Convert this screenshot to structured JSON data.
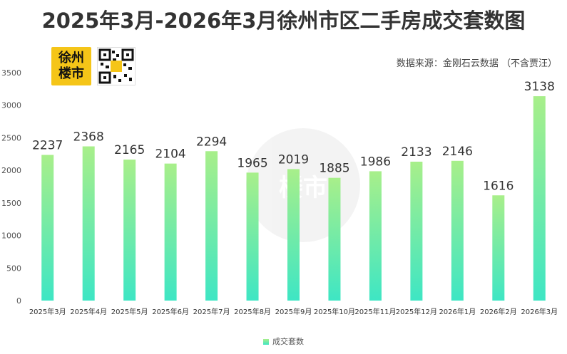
{
  "title": "2025年3月-2026年3月徐州市区二手房成交套数图",
  "source": "数据来源：金刚石云数据  （不含贾汪）",
  "logo": {
    "line1": "徐州",
    "line2": "楼市"
  },
  "watermark": "楼市",
  "colors": {
    "bar_top": "#a8ef8a",
    "bar_bottom": "#3ee6c4",
    "title": "#333333"
  },
  "chart_data": {
    "type": "bar",
    "categories": [
      "2025年3月",
      "2025年4月",
      "2025年5月",
      "2025年6月",
      "2025年7月",
      "2025年8月",
      "2025年9月",
      "2025年10月",
      "2025年11月",
      "2025年12月",
      "2026年1月",
      "2026年2月",
      "2026年3月"
    ],
    "series": [
      {
        "name": "成交套数",
        "values": [
          2237,
          2368,
          2165,
          2104,
          2294,
          1965,
          2019,
          1885,
          1986,
          2133,
          2146,
          1616,
          3138
        ]
      }
    ],
    "ylim": [
      0,
      3500
    ],
    "yticks": [
      0,
      500,
      1000,
      1500,
      2000,
      2500,
      3000,
      3500
    ],
    "grid": false,
    "legend": "bottom"
  }
}
